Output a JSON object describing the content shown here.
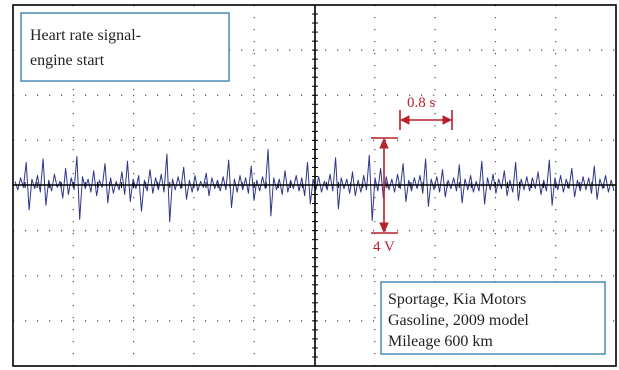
{
  "colors": {
    "frame": "#000000",
    "grid_dots": "#555555",
    "signal": "#2e3588",
    "annotation": "#b8202a",
    "box_border": "#3b82b4",
    "text": "#222222"
  },
  "labels": {
    "title_box": {
      "line1": "Heart rate signal-",
      "line2": "engine start"
    },
    "info_box": {
      "line1": "Sportage, Kia Motors",
      "line2": "Gasoline, 2009 model",
      "line3": "Mileage 600 km"
    },
    "time_scale": "0.8 s",
    "amplitude_scale": "4 V"
  },
  "chart_data": {
    "type": "line",
    "title": "Heart rate signal-engine start",
    "xlabel": "",
    "ylabel": "",
    "grid": true,
    "grid_divisions": {
      "x": 10,
      "y": 8
    },
    "scale_markers": {
      "time_per_division_s": 0.8,
      "amplitude_marker_V": 4
    },
    "series": [
      {
        "values": [
          0.3,
          -0.4,
          0.6,
          -0.2,
          1.9,
          -2.1,
          0.5,
          -0.3,
          0.8,
          -0.6,
          2.2,
          -1.7,
          0.4,
          -0.5,
          0.9,
          -0.2,
          0.3,
          -1.1,
          1.4,
          -0.8,
          0.6,
          -0.4,
          2.4,
          -2.9,
          0.7,
          -0.3,
          0.5,
          -0.6,
          1.2,
          -0.9,
          0.4,
          -0.2,
          1.8,
          -1.5,
          0.6,
          -0.7,
          0.3,
          -0.4,
          1.1,
          -0.8,
          2.0,
          -1.4,
          0.5,
          -0.3,
          0.8,
          -2.2,
          0.4,
          -0.5,
          1.3,
          -0.7,
          0.6,
          -0.4,
          0.9,
          -0.6,
          2.6,
          -3.1,
          0.5,
          -0.4,
          0.7,
          -0.3,
          1.5,
          -1.2,
          0.4,
          -0.6,
          0.8,
          -0.5,
          0.3,
          -0.2,
          1.0,
          -0.9,
          0.6,
          -0.3,
          0.4,
          -0.5,
          0.7,
          -0.4,
          2.1,
          -1.9,
          0.5,
          -0.6,
          0.8,
          -0.4,
          0.6,
          -0.7,
          1.6,
          -1.3,
          0.4,
          -0.5,
          0.7,
          -0.3,
          3.0,
          -2.6,
          0.6,
          -0.4,
          0.5,
          -0.8,
          1.2,
          -0.6,
          0.4,
          -0.3,
          0.8,
          -0.5,
          0.6,
          -0.9,
          1.9,
          -1.6,
          0.5,
          -0.4,
          0.7,
          -0.6,
          0.3,
          -0.4,
          0.9,
          -0.5,
          2.3,
          -2.0,
          0.6,
          -0.3,
          0.5,
          -0.7,
          1.1,
          -0.9,
          0.4,
          -0.6,
          0.8,
          -0.4,
          2.5,
          -3.0,
          0.6,
          -0.5,
          1.4,
          -1.1,
          0.7,
          -0.4,
          0.5,
          -0.6,
          0.9,
          -0.3,
          1.8,
          -1.4,
          0.4,
          -0.5,
          0.6,
          -0.3,
          0.8,
          -0.7,
          2.2,
          -1.8,
          0.5,
          -0.4,
          0.7,
          -0.6,
          1.3,
          -1.0,
          0.4,
          -0.3,
          0.6,
          -0.5,
          1.7,
          -1.5,
          0.5,
          -0.4,
          0.8,
          -0.6,
          0.3,
          -0.5,
          2.0,
          -1.6,
          0.6,
          -0.4,
          0.9,
          -0.7,
          0.5,
          -0.3,
          1.2,
          -0.9,
          0.4,
          -0.6,
          1.9,
          -1.3,
          0.5,
          -0.4,
          0.7,
          -0.5,
          0.6,
          -0.3,
          1.1,
          -0.8,
          0.4,
          -0.5,
          2.1,
          -1.7,
          0.6,
          -0.4,
          0.8,
          -0.6,
          0.5,
          -0.3,
          1.4,
          -1.0,
          0.4,
          -0.5,
          0.7,
          -0.4,
          0.6,
          -0.7,
          1.6,
          -1.2,
          0.5,
          -0.3,
          0.8,
          -0.6,
          0.4,
          -0.5
        ]
      }
    ]
  }
}
